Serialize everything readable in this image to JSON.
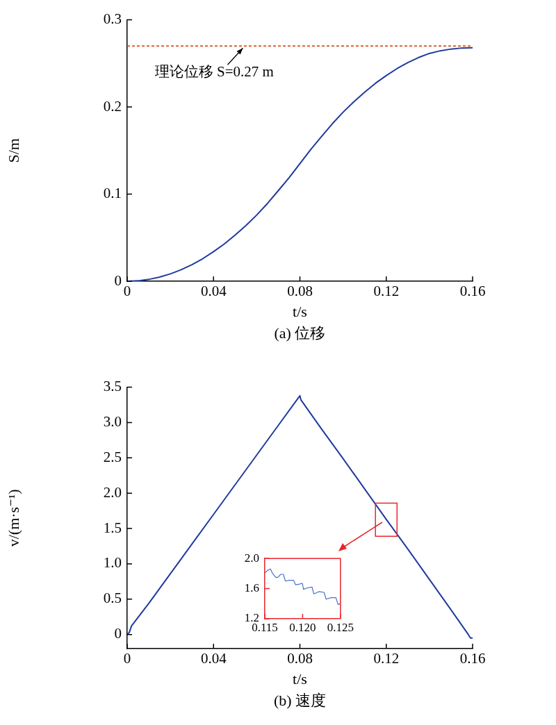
{
  "chart_data": [
    {
      "type": "line",
      "xlabel": "t/s",
      "ylabel": "S/m",
      "xlim": [
        0,
        0.16
      ],
      "xticks": [
        0,
        0.04,
        0.08,
        0.12,
        0.16
      ],
      "ylim": [
        0,
        0.3
      ],
      "yticks": [
        0,
        0.1,
        0.2,
        0.3
      ],
      "annotations": [
        "(a) 位移"
      ],
      "ref_lines": [
        {
          "axis": "y",
          "value": 0.27,
          "label": "理论位移 S=0.27 m",
          "color": "#d9622b",
          "line_style": "dashed"
        }
      ],
      "series": [
        {
          "color": "#1f3a9e",
          "x": [
            0,
            0.005,
            0.01,
            0.015,
            0.02,
            0.025,
            0.03,
            0.035,
            0.04,
            0.045,
            0.05,
            0.055,
            0.06,
            0.065,
            0.07,
            0.075,
            0.08,
            0.085,
            0.09,
            0.095,
            0.1,
            0.105,
            0.11,
            0.115,
            0.12,
            0.125,
            0.13,
            0.135,
            0.14,
            0.145,
            0.15,
            0.155,
            0.16
          ],
          "values": [
            0,
            0.0005,
            0.0021,
            0.0048,
            0.0085,
            0.0132,
            0.019,
            0.0259,
            0.034,
            0.0428,
            0.053,
            0.0639,
            0.076,
            0.0893,
            0.104,
            0.1188,
            0.135,
            0.1512,
            0.166,
            0.1807,
            0.194,
            0.2061,
            0.217,
            0.2272,
            0.236,
            0.2441,
            0.251,
            0.2568,
            0.2615,
            0.2645,
            0.2665,
            0.2677,
            0.268
          ]
        }
      ]
    },
    {
      "type": "line",
      "xlabel": "t/s",
      "ylabel": "v/(m·s⁻¹)",
      "xlim": [
        0,
        0.16
      ],
      "xticks": [
        0,
        0.04,
        0.08,
        0.12,
        0.16
      ],
      "ylim": [
        -0.2,
        3.5
      ],
      "yticks": [
        {
          "value": 0,
          "label": "0"
        },
        {
          "value": 0.5,
          "label": "0.5"
        },
        {
          "value": 1,
          "label": "1.0"
        },
        {
          "value": 1.5,
          "label": "1.5"
        },
        {
          "value": 2,
          "label": "2.0"
        },
        {
          "value": 2.5,
          "label": "2.5"
        },
        {
          "value": 3,
          "label": "3.0"
        },
        {
          "value": 3.5,
          "label": "3.5"
        }
      ],
      "annotations": [
        "(b) 速度"
      ],
      "series": [
        {
          "color": "#1f3a9e",
          "x": [
            0,
            0.001,
            0.002,
            0.01,
            0.02,
            0.03,
            0.04,
            0.05,
            0.06,
            0.07,
            0.08,
            0.0805,
            0.09,
            0.1,
            0.11,
            0.12,
            0.13,
            0.14,
            0.15,
            0.158,
            0.159,
            0.16
          ],
          "values": [
            0,
            0.03,
            0.12,
            0.44,
            0.86,
            1.28,
            1.7,
            2.12,
            2.54,
            2.96,
            3.38,
            3.32,
            2.91,
            2.49,
            2.06,
            1.63,
            1.21,
            0.78,
            0.35,
            0,
            -0.05,
            -0.05
          ]
        }
      ]
    },
    {
      "type": "line",
      "xlim": [
        0.115,
        0.125
      ],
      "xticks": [
        0.115,
        {
          "value": 0.12,
          "label": "0.120"
        },
        0.125
      ],
      "ylim": [
        1.2,
        2.0
      ],
      "yticks": [
        1.2,
        1.6,
        {
          "value": 2,
          "label": "2.0"
        }
      ],
      "series": [
        {
          "color": "#4a6fc9",
          "x": [
            0.115,
            0.1155,
            0.11576,
            0.11598,
            0.11644,
            0.11671,
            0.11712,
            0.11745,
            0.11772,
            0.11821,
            0.1188,
            0.11908,
            0.11957,
            0.11997,
            0.12011,
            0.12065,
            0.12125,
            0.12147,
            0.12215,
            0.12283,
            0.1231,
            0.12378,
            0.1244,
            0.12467,
            0.125
          ],
          "values": [
            1.81,
            1.85,
            1.86,
            1.81,
            1.75,
            1.75,
            1.79,
            1.79,
            1.7,
            1.71,
            1.71,
            1.65,
            1.66,
            1.67,
            1.59,
            1.61,
            1.62,
            1.53,
            1.56,
            1.55,
            1.46,
            1.48,
            1.48,
            1.39,
            1.4
          ]
        }
      ]
    }
  ]
}
